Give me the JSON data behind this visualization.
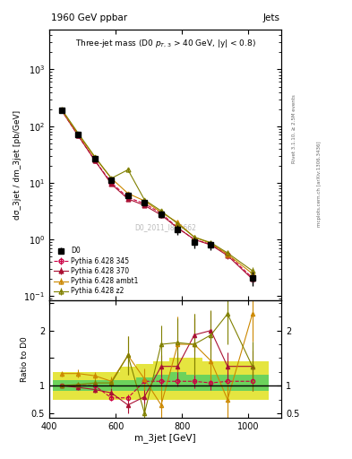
{
  "title_top": "1960 GeV ppbar",
  "title_top_right": "Jets",
  "plot_title": "Three-jet mass (D0 p_{T,3} > 40 GeV, |y| < 0.8)",
  "xlabel": "m_3jet [GeV]",
  "ylabel_main": "dσ_3jet / dm_3jet [pb/GeV]",
  "ylabel_ratio": "Ratio to D0",
  "watermark": "D0_2011_I895662",
  "right_label_top": "Rivet 3.1.10, ≥ 2.5M events",
  "right_label_bottom": "mcplots.cern.ch [arXiv:1306.3436]",
  "x_centers": [
    437,
    487,
    537,
    587,
    637,
    687,
    737,
    787,
    837,
    887,
    937,
    1012
  ],
  "x_edges": [
    412,
    462,
    512,
    562,
    612,
    662,
    712,
    762,
    812,
    862,
    912,
    962,
    1062
  ],
  "d0_y": [
    190,
    70,
    27,
    11,
    6.0,
    4.5,
    2.8,
    1.5,
    0.9,
    0.8,
    null,
    0.21
  ],
  "d0_yerr": [
    15,
    5,
    2,
    1,
    0.6,
    0.5,
    0.4,
    0.3,
    0.2,
    0.15,
    null,
    0.06
  ],
  "py345_y": [
    190,
    68,
    25,
    10,
    5.5,
    4.3,
    2.9,
    1.6,
    1.0,
    0.82,
    0.55,
    0.21
  ],
  "py345_yerr": [
    5,
    3,
    1,
    0.5,
    0.3,
    0.3,
    0.2,
    0.15,
    0.1,
    0.1,
    0.08,
    0.04
  ],
  "py370_y": [
    190,
    68,
    25,
    9.5,
    5.2,
    4.0,
    2.7,
    1.6,
    1.0,
    0.8,
    0.52,
    0.2
  ],
  "py370_yerr": [
    5,
    3,
    1,
    0.5,
    0.3,
    0.25,
    0.2,
    0.15,
    0.1,
    0.1,
    0.07,
    0.03
  ],
  "pyambt1_y": [
    195,
    72,
    28,
    12,
    6.5,
    4.8,
    3.0,
    2.0,
    1.1,
    0.85,
    0.55,
    0.25
  ],
  "pyambt1_yerr": [
    5,
    3,
    1,
    0.6,
    0.4,
    0.3,
    0.2,
    0.2,
    0.1,
    0.1,
    0.08,
    0.05
  ],
  "pyz2_y": [
    200,
    75,
    29,
    12,
    17,
    5.0,
    3.2,
    1.9,
    1.1,
    0.88,
    0.58,
    0.28
  ],
  "pyz2_yerr": [
    6,
    3,
    1,
    0.6,
    1.5,
    0.35,
    0.22,
    0.18,
    0.11,
    0.1,
    0.08,
    0.05
  ],
  "ratio_py345_y": [
    1.0,
    1.0,
    1.0,
    0.78,
    0.78,
    1.08,
    1.08,
    1.08,
    1.08,
    1.05,
    1.08,
    1.08
  ],
  "ratio_py345_yerr": [
    0.03,
    0.05,
    0.05,
    0.06,
    0.06,
    0.07,
    0.07,
    0.09,
    0.12,
    0.13,
    0.15,
    0.18
  ],
  "ratio_py370_y": [
    1.0,
    0.97,
    0.93,
    0.87,
    0.65,
    0.8,
    1.35,
    1.35,
    1.92,
    2.0,
    1.35,
    1.35
  ],
  "ratio_py370_yerr": [
    0.03,
    0.05,
    0.05,
    0.09,
    0.15,
    0.15,
    0.2,
    0.25,
    0.3,
    0.35,
    0.25,
    0.28
  ],
  "ratio_pyambt1_y": [
    1.22,
    1.22,
    1.18,
    1.08,
    1.55,
    1.12,
    0.65,
    1.75,
    1.75,
    1.45,
    0.75,
    2.3
  ],
  "ratio_pyambt1_yerr": [
    0.05,
    0.07,
    0.07,
    0.09,
    0.35,
    0.2,
    0.35,
    0.5,
    0.55,
    0.35,
    0.35,
    0.5
  ],
  "ratio_pyz2_y": [
    1.0,
    1.02,
    1.05,
    1.05,
    1.55,
    0.5,
    1.75,
    1.78,
    1.75,
    1.92,
    2.3,
    1.35
  ],
  "ratio_pyz2_yerr": [
    0.03,
    0.05,
    0.06,
    0.08,
    0.35,
    0.18,
    0.35,
    0.45,
    0.55,
    0.45,
    0.55,
    0.45
  ],
  "band_green_lo": [
    0.9,
    0.9,
    0.9,
    0.9,
    0.9,
    0.9,
    0.9,
    0.9,
    0.9,
    0.9,
    0.9,
    0.9
  ],
  "band_green_hi": [
    1.1,
    1.1,
    1.1,
    1.1,
    1.1,
    1.15,
    1.2,
    1.25,
    1.2,
    1.2,
    1.2,
    1.2
  ],
  "band_yellow_lo": [
    0.75,
    0.75,
    0.75,
    0.75,
    0.75,
    0.75,
    0.75,
    0.75,
    0.75,
    0.75,
    0.75,
    0.75
  ],
  "band_yellow_hi": [
    1.25,
    1.25,
    1.25,
    1.25,
    1.35,
    1.4,
    1.45,
    1.5,
    1.5,
    1.45,
    1.45,
    1.45
  ],
  "color_d0": "#000000",
  "color_py345": "#cc0044",
  "color_py370": "#aa1133",
  "color_pyambt1": "#cc8800",
  "color_pyz2": "#808000",
  "color_green_band": "#44cc66",
  "color_yellow_band": "#dddd00",
  "xlim": [
    400,
    1100
  ],
  "ylim_main": [
    0.085,
    5000
  ],
  "ylim_ratio": [
    0.42,
    2.55
  ],
  "legend_labels": [
    "D0",
    "Pythia 6.428 345",
    "Pythia 6.428 370",
    "Pythia 6.428 ambt1",
    "Pythia 6.428 z2"
  ]
}
